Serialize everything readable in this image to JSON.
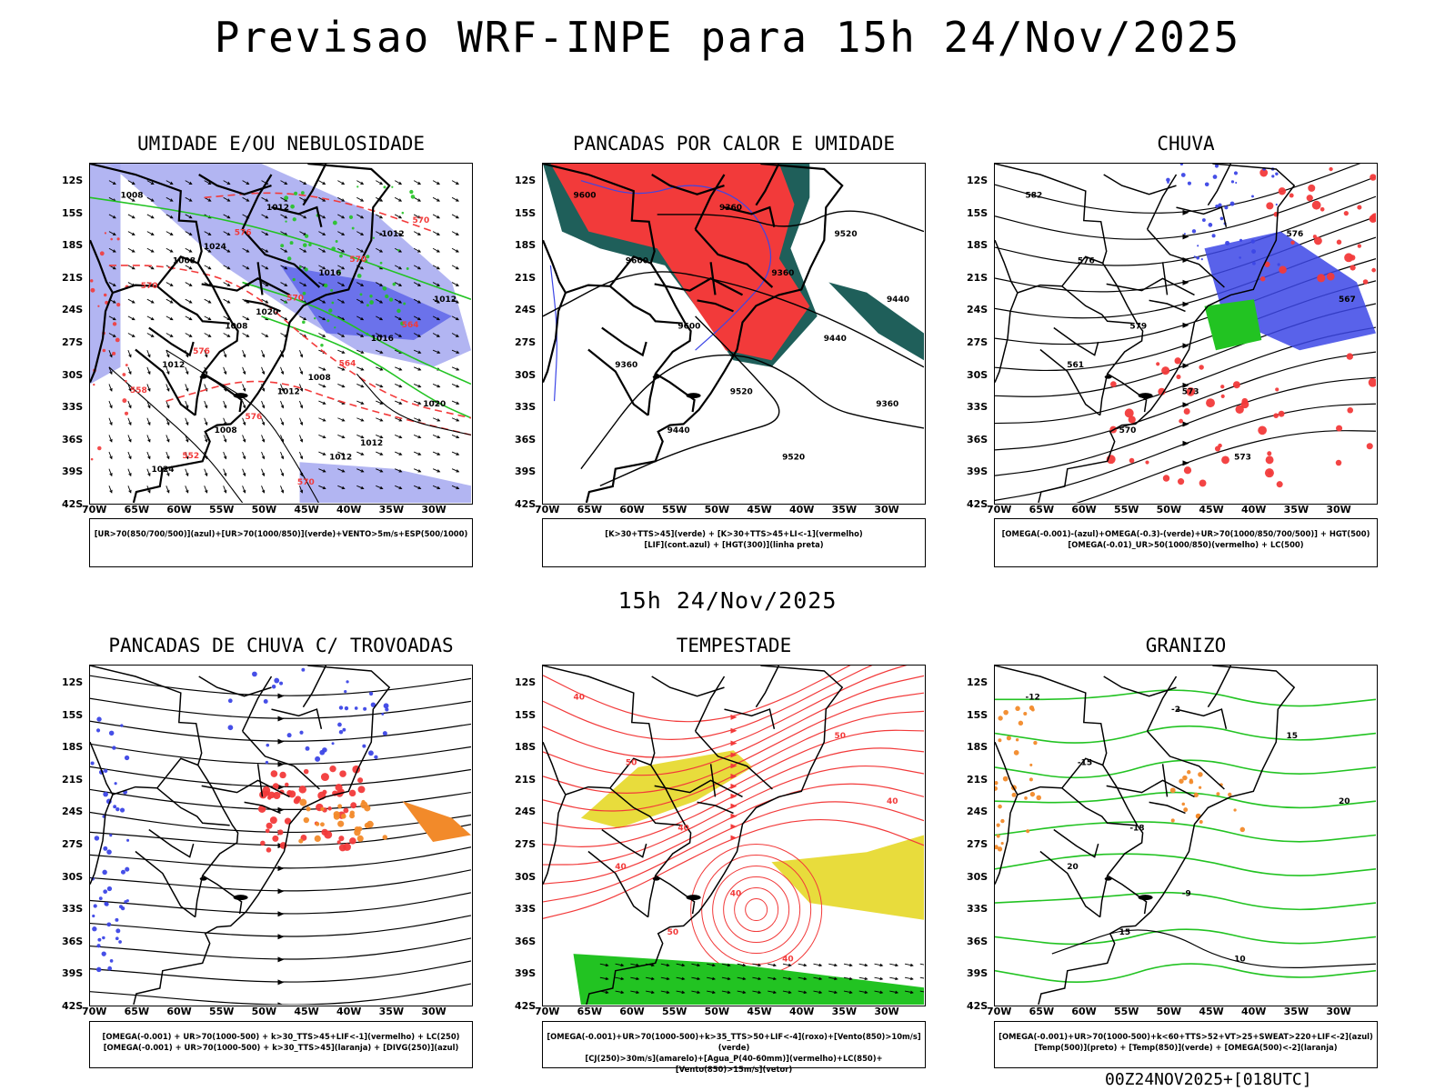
{
  "title": "Previsao WRF-INPE  para 15h 24/Nov/2025",
  "mid_time": "15h 24/Nov/2025",
  "footer": "00Z24NOV2025+[018UTC]",
  "axes": {
    "lat_labels": [
      "12S",
      "15S",
      "18S",
      "21S",
      "24S",
      "27S",
      "30S",
      "33S",
      "36S",
      "39S",
      "42S"
    ],
    "lon_labels": [
      "70W",
      "65W",
      "60W",
      "55W",
      "50W",
      "45W",
      "40W",
      "35W",
      "30W"
    ]
  },
  "colors": {
    "red": "#f23a3a",
    "green": "#22c322",
    "blue": "#3c46e6",
    "teal": "#1f5f5a",
    "yellow": "#e8dc3c",
    "orange": "#f28a2a",
    "lavender": "#a4a8f0"
  },
  "chart_data": [
    {
      "type": "map",
      "title": "UMIDADE E/OU NEBULOSIDADE",
      "caption": [
        "[UR>70(850/700/500)](azul)+[UR>70(1000/850)](verde)+VENTO>5m/s+ESP(500/1000)"
      ],
      "contour_labels": [
        "1008",
        "1008",
        "1008",
        "1012",
        "1012",
        "1012",
        "1012",
        "1012",
        "1008",
        "1012",
        "1016",
        "1016",
        "1020",
        "1024",
        "1024",
        "1020",
        "1008",
        "1012",
        "570",
        "570",
        "576",
        "576",
        "570",
        "570",
        "564",
        "558",
        "552",
        "576",
        "570",
        "564"
      ]
    },
    {
      "type": "map",
      "title": "PANCADAS POR CALOR E UMIDADE",
      "caption": [
        "[K>30+TTS>45](verde) + [K>30+TTS>45+LI<-1](vermelho)",
        "[LIF](cont.azul) + [HGT(300)](linha preta)"
      ],
      "contour_labels": [
        "9600",
        "9600",
        "9600",
        "9520",
        "9520",
        "9520",
        "9440",
        "9360",
        "9440",
        "9360",
        "9360",
        "9440",
        "9360"
      ]
    },
    {
      "type": "map",
      "title": "CHUVA",
      "caption": [
        "[OMEGA(-0.001)-(azul)+OMEGA(-0.3)-(verde)+UR>70(1000/850/700/500)] + HGT(500)",
        "[OMEGA(-0.01)_UR>50(1000/850)(vermelho) + LC(500)"
      ],
      "contour_labels": [
        "582",
        "576",
        "579",
        "573",
        "573",
        "576",
        "567",
        "561",
        "570"
      ]
    },
    {
      "type": "map",
      "title": "PANCADAS DE CHUVA C/ TROVOADAS",
      "caption": [
        "[OMEGA(-0.001) + UR>70(1000-500) + k>30_TTS>45+LIF<-1](vermelho) + LC(250)",
        "[OMEGA(-0.001) + UR>70(1000-500) + k>30_TTS>45](laranja) + [DIVG(250)](azul)"
      ],
      "contour_labels": []
    },
    {
      "type": "map",
      "title": "TEMPESTADE",
      "caption": [
        "[OMEGA(-0.001)+UR>70(1000-500)+k>35_TTS>50+LIF<-4](roxo)+[Vento(850)>10m/s](verde)",
        "[CJ(250)>30m/s](amarelo)+[Agua_P(40-60mm)](vermelho)+LC(850)+[Vento(850)>15m/s](vetor)"
      ],
      "contour_labels": [
        "40",
        "50",
        "40",
        "40",
        "40",
        "50",
        "40",
        "40",
        "50"
      ]
    },
    {
      "type": "map",
      "title": "GRANIZO",
      "caption": [
        "[OMEGA(-0.001)+UR>70(1000-500)+k<60+TTS>52+VT>25+SWEAT>220+LIF<-2](azul)",
        "[Temp(500)](preto) + [Temp(850)](verde) + [OMEGA(500)<-2](laranja)"
      ],
      "contour_labels": [
        "-12",
        "-15",
        "-18",
        "-9",
        "10",
        "15",
        "20",
        "20",
        "15",
        "-2"
      ]
    }
  ]
}
